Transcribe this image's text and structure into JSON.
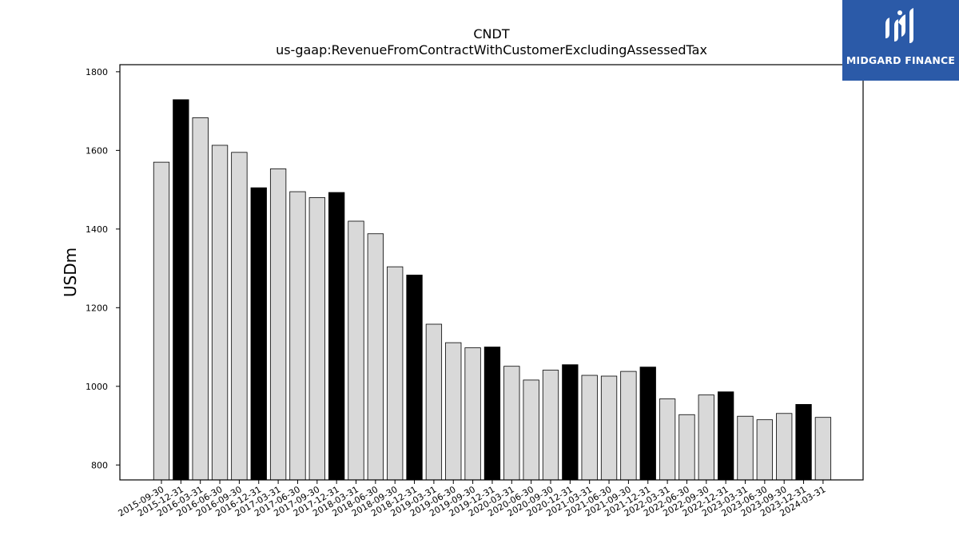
{
  "brand": {
    "name": "MIDGARD FINANCE",
    "bg_color": "#2b5aa8"
  },
  "chart_data": {
    "type": "bar",
    "title": "CNDT",
    "subtitle": "us-gaap:RevenueFromContractWithCustomerExcludingAssessedTax",
    "xlabel": "",
    "ylabel": "USDm",
    "ylim": [
      762,
      1818
    ],
    "yticks": [
      800,
      1000,
      1200,
      1400,
      1600,
      1800
    ],
    "categories": [
      "2015-09-30",
      "2015-12-31",
      "2016-03-31",
      "2016-06-30",
      "2016-09-30",
      "2016-12-31",
      "2017-03-31",
      "2017-06-30",
      "2017-09-30",
      "2017-12-31",
      "2018-03-31",
      "2018-06-30",
      "2018-09-30",
      "2018-12-31",
      "2019-03-31",
      "2019-06-30",
      "2019-09-30",
      "2019-12-31",
      "2020-03-31",
      "2020-06-30",
      "2020-09-30",
      "2020-12-31",
      "2021-03-31",
      "2021-06-30",
      "2021-09-30",
      "2021-12-31",
      "2022-03-31",
      "2022-06-30",
      "2022-09-30",
      "2022-12-31",
      "2023-03-31",
      "2023-06-30",
      "2023-09-30",
      "2023-12-31",
      "2024-03-31"
    ],
    "values": [
      1570,
      1729,
      1683,
      1613,
      1595,
      1505,
      1553,
      1495,
      1480,
      1493,
      1420,
      1388,
      1304,
      1283,
      1158,
      1111,
      1098,
      1100,
      1051,
      1016,
      1041,
      1055,
      1028,
      1026,
      1038,
      1049,
      968,
      928,
      978,
      986,
      924,
      915,
      931,
      954,
      921
    ],
    "highlight": [
      false,
      true,
      false,
      false,
      false,
      true,
      false,
      false,
      false,
      true,
      false,
      false,
      false,
      true,
      false,
      false,
      false,
      true,
      false,
      false,
      false,
      true,
      false,
      false,
      false,
      true,
      false,
      false,
      false,
      true,
      false,
      false,
      false,
      true,
      false
    ],
    "colors": {
      "bar": "#d9d9d9",
      "highlight": "#000000",
      "edge": "#000000"
    },
    "grid": false,
    "legend": "none"
  }
}
